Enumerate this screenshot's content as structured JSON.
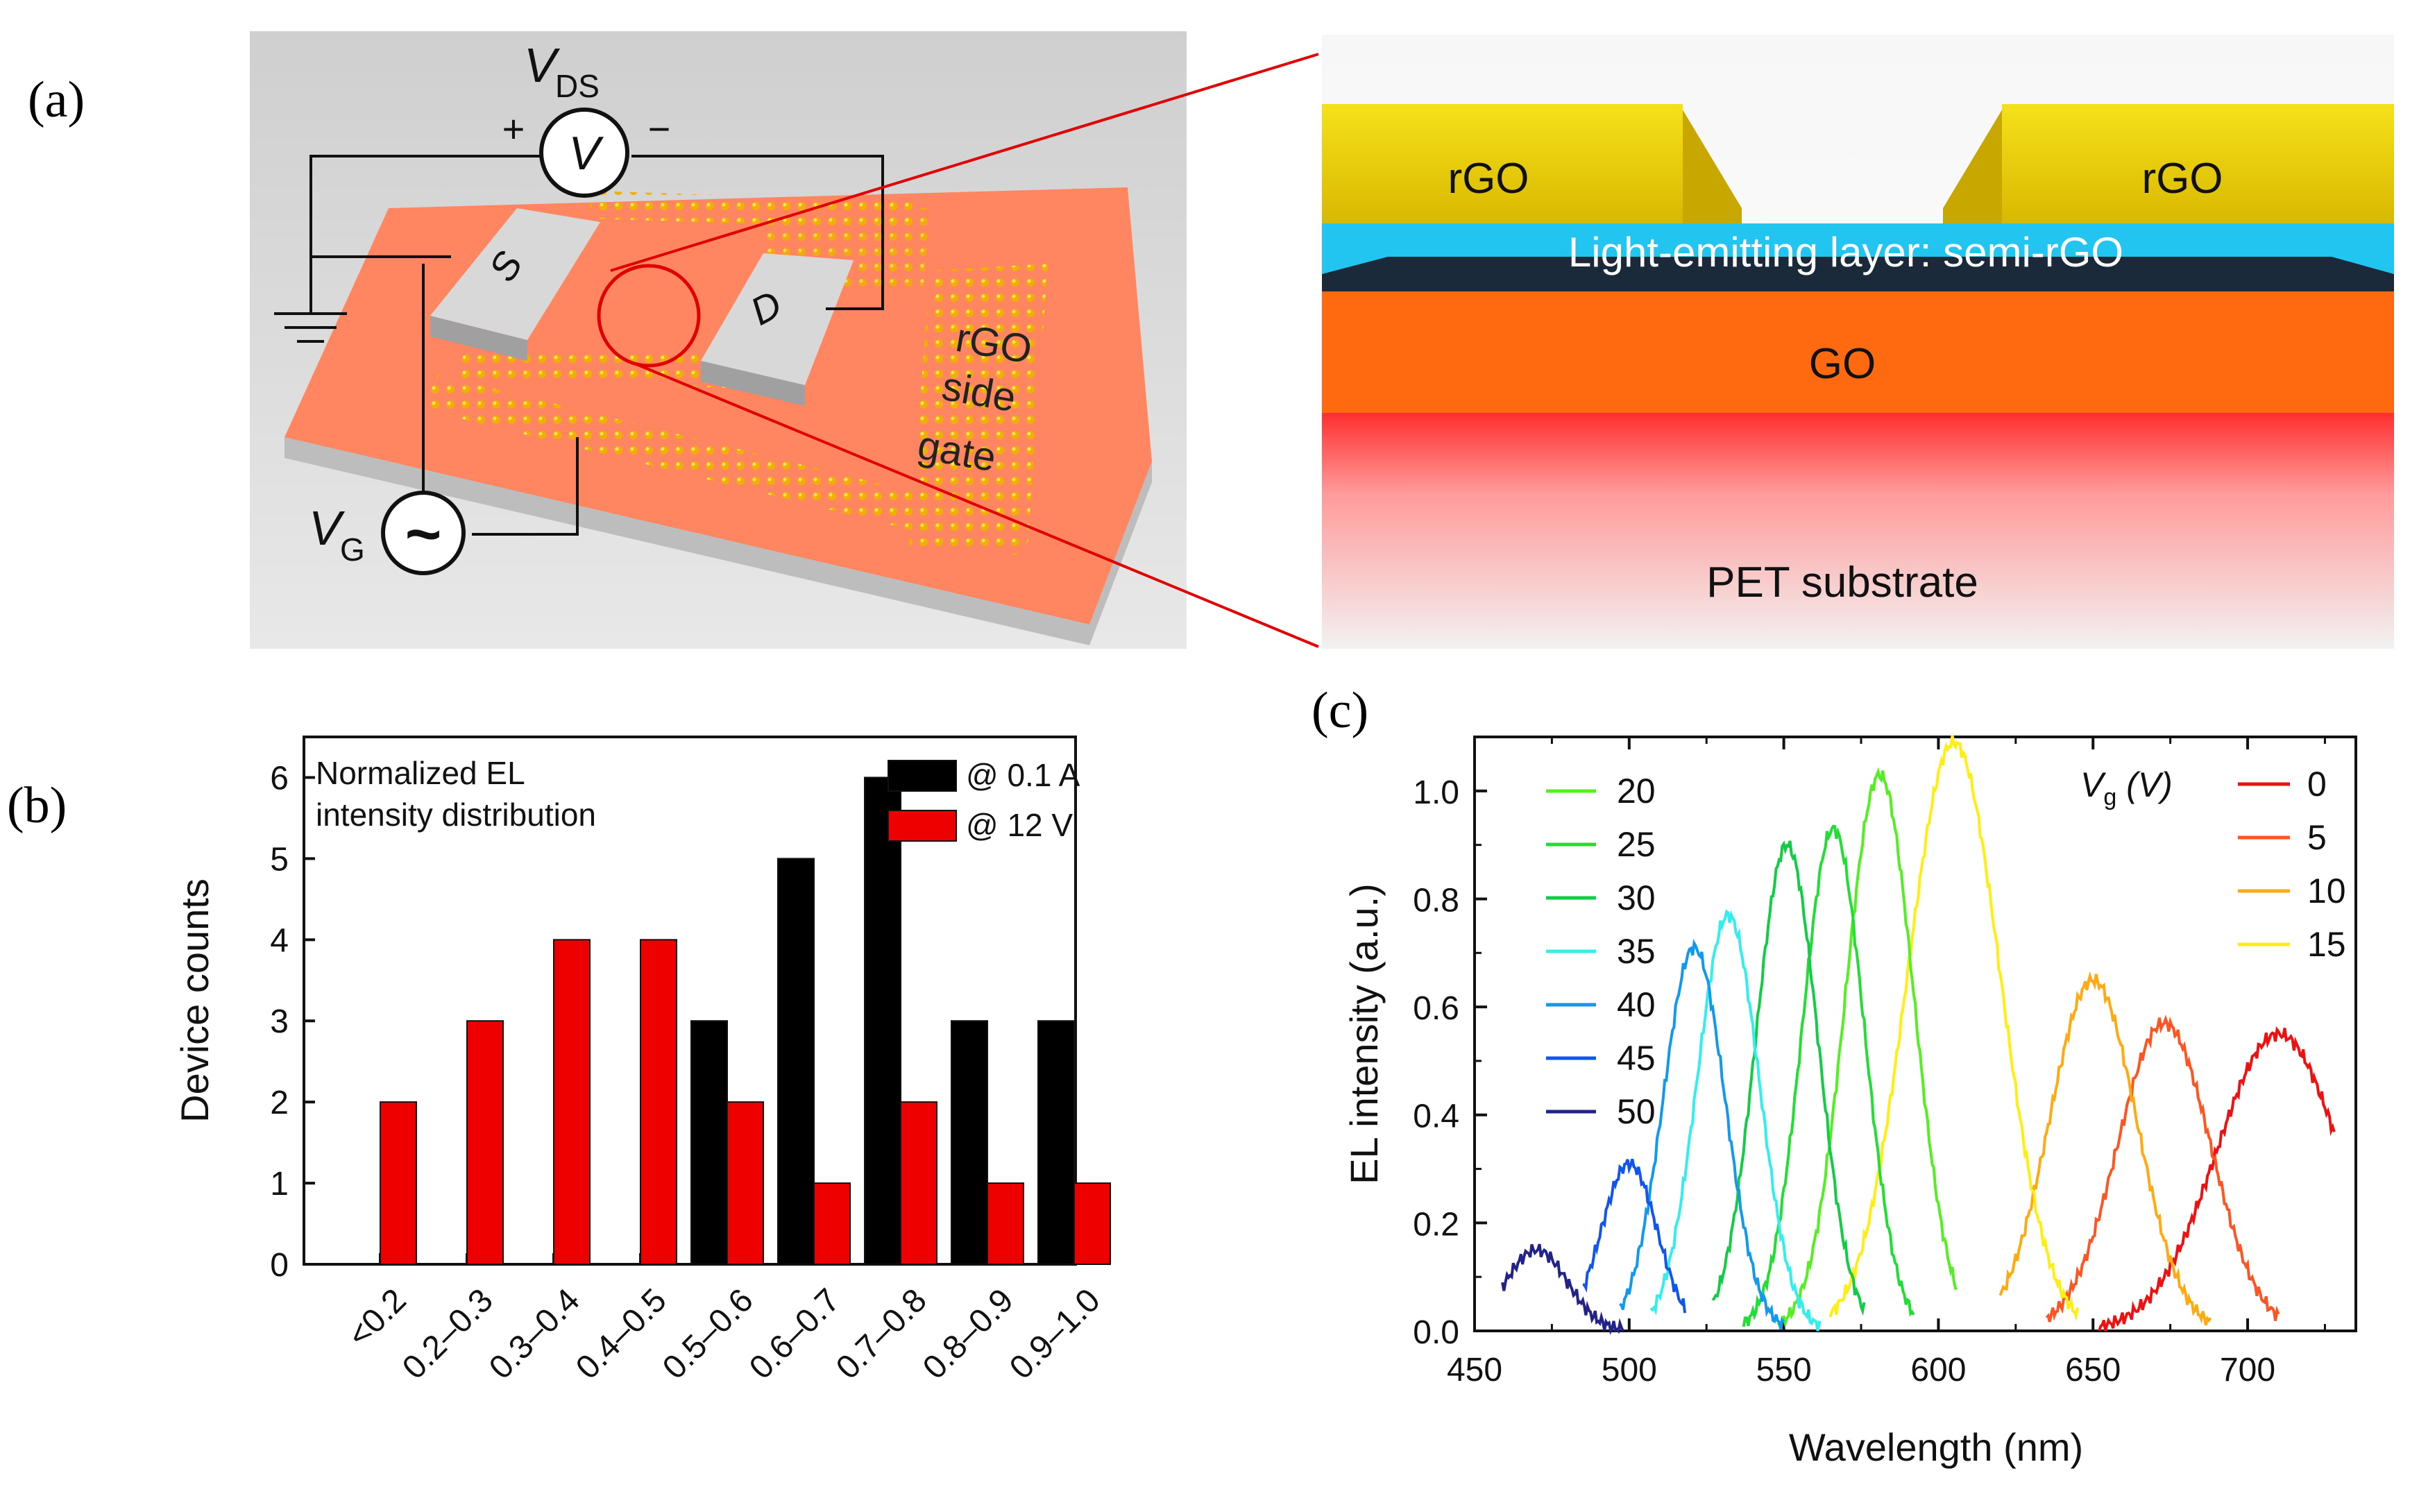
{
  "panel_labels": {
    "a": "(a)",
    "b": "(b)",
    "c": "(c)"
  },
  "device": {
    "vds_main": "V",
    "vds_sub": "DS",
    "voltmeter": "V",
    "plus": "+",
    "minus": "−",
    "source": "S",
    "drain": "D",
    "side_gate_line1": "rGO",
    "side_gate_line2": "side",
    "side_gate_line3": "gate",
    "vg_main": "V",
    "vg_sub": "G",
    "ac_symbol": "~"
  },
  "cross_section": {
    "left_electrode": "rGO",
    "right_electrode": "rGO",
    "emitting_layer": "Light-emitting layer: semi-rGO",
    "go_layer": "GO",
    "substrate": "PET substrate"
  },
  "chart_data": [
    {
      "id": "b",
      "type": "bar",
      "title": "Normalized EL intensity distribution",
      "title_line1": "Normalized EL",
      "title_line2": "intensity distribution",
      "xlabel": "",
      "ylabel": "Device counts",
      "categories": [
        "<0.2",
        "0.2–0.3",
        "0.3–0.4",
        "0.4–0.5",
        "0.5–0.6",
        "0.6–0.7",
        "0.7–0.8",
        "0.8–0.9",
        "0.9–1.0"
      ],
      "ylim": [
        0,
        6.5
      ],
      "yticks": [
        "0",
        "1",
        "2",
        "3",
        "4",
        "5",
        "6"
      ],
      "series": [
        {
          "name": "@ 0.1 A",
          "color": "#000000",
          "values": [
            0,
            0,
            0,
            0,
            3,
            5,
            6,
            3,
            3
          ]
        },
        {
          "name": "@ 12 V",
          "color": "#ee0000",
          "values": [
            2,
            3,
            4,
            4,
            2,
            1,
            2,
            1,
            1
          ]
        }
      ]
    },
    {
      "id": "c",
      "type": "line",
      "xlabel": "Wavelength (nm)",
      "ylabel": "EL intensity (a.u.)",
      "xlim": [
        450,
        735
      ],
      "ylim": [
        0,
        1.1
      ],
      "xticks": [
        "450",
        "500",
        "550",
        "600",
        "650",
        "700"
      ],
      "yticks": [
        "0.0",
        "0.2",
        "0.4",
        "0.6",
        "0.8",
        "1.0"
      ],
      "legend_title_main": "V",
      "legend_title_sub": "g",
      "legend_title_unit": " (V)",
      "series": [
        {
          "name": "0",
          "color": "#ee1111",
          "peak": 710,
          "amp": 0.55,
          "width": 20,
          "base": 0.0,
          "range": [
            652,
            728
          ]
        },
        {
          "name": "5",
          "color": "#ff5522",
          "peak": 673,
          "amp": 0.57,
          "width": 15,
          "base": 0.0,
          "range": [
            635,
            710
          ]
        },
        {
          "name": "10",
          "color": "#ffaa11",
          "peak": 650,
          "amp": 0.65,
          "width": 14,
          "base": 0.0,
          "range": [
            620,
            688
          ]
        },
        {
          "name": "15",
          "color": "#ffee11",
          "peak": 605,
          "amp": 1.09,
          "width": 15,
          "base": 0.0,
          "range": [
            565,
            645
          ]
        },
        {
          "name": "20",
          "color": "#55ee22",
          "peak": 581,
          "amp": 1.03,
          "width": 11,
          "base": 0.0,
          "range": [
            548,
            606
          ]
        },
        {
          "name": "25",
          "color": "#22dd33",
          "peak": 566,
          "amp": 0.93,
          "width": 10,
          "base": 0.0,
          "range": [
            537,
            592
          ]
        },
        {
          "name": "30",
          "color": "#11cc44",
          "peak": 551,
          "amp": 0.9,
          "width": 10,
          "base": 0.0,
          "range": [
            527,
            576
          ]
        },
        {
          "name": "35",
          "color": "#33eeee",
          "peak": 532,
          "amp": 0.77,
          "width": 10,
          "base": 0.0,
          "range": [
            507,
            562
          ]
        },
        {
          "name": "40",
          "color": "#1199ee",
          "peak": 521,
          "amp": 0.71,
          "width": 10,
          "base": 0.0,
          "range": [
            497,
            550
          ]
        },
        {
          "name": "45",
          "color": "#1155ee",
          "peak": 500,
          "amp": 0.31,
          "width": 9,
          "base": 0.0,
          "range": [
            485,
            518
          ]
        },
        {
          "name": "50",
          "color": "#222288",
          "peak": 470,
          "amp": 0.15,
          "width": 10,
          "base": 0.0,
          "range": [
            459,
            498
          ]
        }
      ]
    }
  ]
}
